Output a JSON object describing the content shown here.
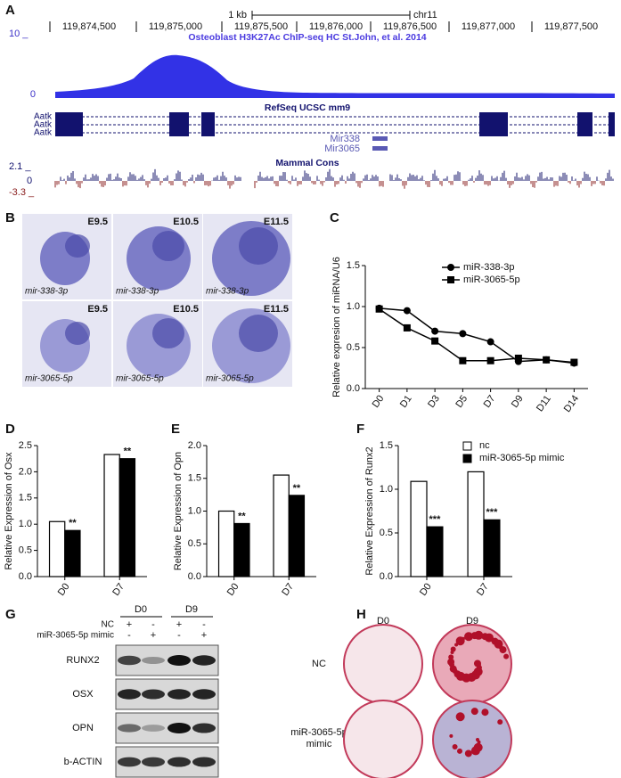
{
  "panels": [
    "A",
    "B",
    "C",
    "D",
    "E",
    "F",
    "G",
    "H"
  ],
  "browser": {
    "ruler": [
      "119,874,500",
      "119,875,000",
      "119,875,500",
      "119,876,000",
      "119,876,500",
      "119,877,000",
      "119,877,500"
    ],
    "scale": "1 kb",
    "chrom": "chr11",
    "chip_title": "Osteoblast H3K27Ac ChIP-seq HC St.John, et al. 2014",
    "chip_max": "10 _",
    "chip_min": "0",
    "refseq_title": "RefSeq UCSC mm9",
    "genes": [
      "Aatk",
      "Aatk",
      "Aatk"
    ],
    "mirs": [
      "Mir338",
      "Mir3065"
    ],
    "cons_title": "Mammal Cons",
    "cons_max": "2.1 _",
    "cons_zero": "0",
    "cons_min": "-3.3 _"
  },
  "embryos": {
    "stages": [
      "E9.5",
      "E10.5",
      "E11.5"
    ],
    "probes": [
      "mir-338-3p",
      "mir-3065-5p"
    ]
  },
  "chart_data": [
    {
      "type": "line",
      "y_label": "Relative expresion of miRNA/U6",
      "categories": [
        "D0",
        "D1",
        "D3",
        "D5",
        "D7",
        "D9",
        "D11",
        "D14"
      ],
      "series": [
        {
          "name": "miR-338-3p",
          "color": "#000000",
          "marker": "circle",
          "values": [
            0.98,
            0.95,
            0.7,
            0.67,
            0.57,
            0.33,
            0.35,
            0.31
          ]
        },
        {
          "name": "miR-3065-5p",
          "color": "#000000",
          "marker": "square",
          "values": [
            0.97,
            0.74,
            0.58,
            0.34,
            0.34,
            0.37,
            0.35,
            0.32
          ]
        }
      ],
      "ylim": [
        0,
        1.5
      ],
      "yticks": [
        {
          "value": 0,
          "label": "0.0"
        },
        {
          "value": 0.5,
          "label": "0.5"
        },
        {
          "value": 1,
          "label": "1.0"
        },
        {
          "value": 1.5,
          "label": "1.5"
        }
      ],
      "legend": "upper right"
    },
    {
      "type": "bar",
      "y_label": "Relative Expression of Osx",
      "categories": [
        "D0",
        "D7"
      ],
      "series": [
        {
          "color": "#ffffff",
          "values": [
            1.05,
            2.33
          ]
        },
        {
          "color": "#000000",
          "values": [
            0.88,
            2.25
          ],
          "annotations": [
            "**",
            "**"
          ]
        }
      ],
      "ylim": [
        0,
        2.5
      ],
      "yticks": [
        {
          "value": 0,
          "label": "0.0"
        },
        {
          "value": 0.5,
          "label": "0.5"
        },
        {
          "value": 1,
          "label": "1.0"
        },
        {
          "value": 1.5,
          "label": "1.5"
        },
        {
          "value": 2,
          "label": "2.0"
        },
        {
          "value": 2.5,
          "label": "2.5"
        }
      ]
    },
    {
      "type": "bar",
      "y_label": "Relative Expression of Opn",
      "categories": [
        "D0",
        "D7"
      ],
      "series": [
        {
          "color": "#ffffff",
          "values": [
            1.0,
            1.55
          ]
        },
        {
          "color": "#000000",
          "values": [
            0.81,
            1.24
          ],
          "annotations": [
            "**",
            "**"
          ]
        }
      ],
      "ylim": [
        0,
        2
      ],
      "yticks": [
        {
          "value": 0,
          "label": "0.0"
        },
        {
          "value": 0.5,
          "label": "0.5"
        },
        {
          "value": 1,
          "label": "1.0"
        },
        {
          "value": 1.5,
          "label": "1.5"
        },
        {
          "value": 2,
          "label": "2.0"
        }
      ]
    },
    {
      "type": "bar",
      "y_label": "Relative Expression of Runx2",
      "categories": [
        "D0",
        "D7"
      ],
      "series": [
        {
          "name": "nc",
          "color": "#ffffff",
          "values": [
            1.09,
            1.2
          ]
        },
        {
          "name": "miR-3065-5p mimic",
          "color": "#000000",
          "values": [
            0.57,
            0.65
          ],
          "annotations": [
            "***",
            "***"
          ]
        }
      ],
      "ylim": [
        0,
        1.5
      ],
      "yticks": [
        {
          "value": 0,
          "label": "0.0"
        },
        {
          "value": 0.5,
          "label": "0.5"
        },
        {
          "value": 1,
          "label": "1.0"
        },
        {
          "value": 1.5,
          "label": "1.5"
        }
      ],
      "legend": "upper right"
    }
  ],
  "blot": {
    "days": [
      "D0",
      "D9"
    ],
    "conditions": [
      "NC",
      "miR-3065-5p mimic"
    ],
    "signs": [
      [
        "+",
        "-",
        "+",
        "-"
      ],
      [
        "-",
        "+",
        "-",
        "+"
      ]
    ],
    "proteins": [
      "RUNX2",
      "OSX",
      "OPN",
      "b-ACTIN"
    ]
  },
  "staining": {
    "days": [
      "D0",
      "D9"
    ],
    "rows": [
      "NC",
      "miR-3065-5p",
      "mimic"
    ]
  }
}
